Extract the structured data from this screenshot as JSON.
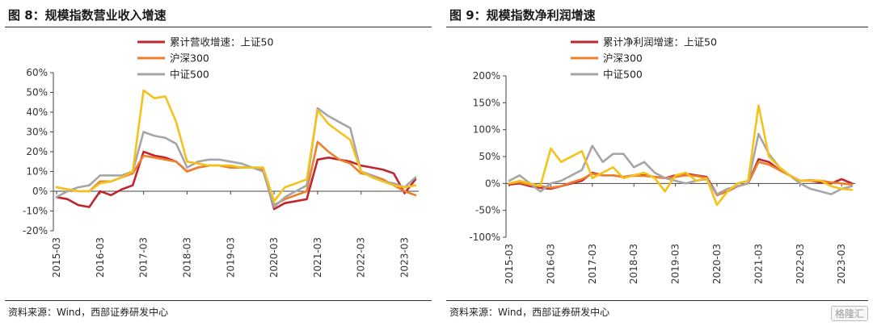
{
  "figures": [
    {
      "title": "图 8：规模指数营业收入增速",
      "source": "资料来源：Wind，西部证券研发中心"
    },
    {
      "title": "图 9：规模指数净利润增速",
      "source": "资料来源：Wind，西部证券研发中心"
    }
  ],
  "watermark": "格隆汇",
  "chart_data": [
    {
      "type": "line",
      "title": "图 8：规模指数营业收入增速",
      "x": [
        "2015-03",
        "2015-06",
        "2015-09",
        "2015-12",
        "2016-03",
        "2016-06",
        "2016-09",
        "2016-12",
        "2017-03",
        "2017-06",
        "2017-09",
        "2017-12",
        "2018-03",
        "2018-06",
        "2018-09",
        "2018-12",
        "2019-03",
        "2019-06",
        "2019-09",
        "2019-12",
        "2020-03",
        "2020-06",
        "2020-09",
        "2020-12",
        "2021-03",
        "2021-06",
        "2021-09",
        "2021-12",
        "2022-03",
        "2022-06",
        "2022-09",
        "2022-12",
        "2023-03",
        "2023-06"
      ],
      "x_ticks": [
        "2015-03",
        "2016-03",
        "2017-03",
        "2018-03",
        "2019-03",
        "2020-03",
        "2021-03",
        "2022-03",
        "2023-03"
      ],
      "y_ticks": [
        "60%",
        "50%",
        "40%",
        "30%",
        "20%",
        "10%",
        "0%",
        "-10%",
        "-20%"
      ],
      "ylim": [
        -20,
        60
      ],
      "y_unit": "%",
      "legend_position": "top-center",
      "series": [
        {
          "name": "累计营收增速：上证50",
          "color": "#c0272d",
          "values": [
            -3,
            -4,
            -7,
            -8,
            0,
            -2,
            1,
            3,
            20,
            18,
            17,
            15,
            10,
            12,
            13,
            13,
            12,
            12,
            12,
            11,
            -9,
            -6,
            -5,
            -4,
            16,
            17,
            16,
            15,
            13,
            12,
            11,
            9,
            -1,
            6
          ]
        },
        {
          "name": "沪深300",
          "color": "#ef7f2c",
          "values": [
            2,
            1,
            0,
            0,
            5,
            5,
            7,
            9,
            18,
            17,
            16,
            15,
            10,
            12,
            13,
            13,
            12,
            12,
            12,
            11,
            -7,
            -4,
            -2,
            0,
            25,
            20,
            16,
            14,
            9,
            8,
            6,
            3,
            0,
            -2
          ]
        },
        {
          "name": "中证500",
          "color": "#a6a6a6",
          "values": [
            -3,
            0,
            2,
            3,
            8,
            8,
            8,
            10,
            30,
            28,
            27,
            24,
            12,
            15,
            16,
            16,
            15,
            14,
            12,
            10,
            -8,
            -3,
            0,
            3,
            42,
            38,
            35,
            32,
            10,
            8,
            5,
            4,
            2,
            7
          ]
        },
        {
          "name": "",
          "color": "#f4c21a",
          "values": [
            2,
            1,
            0,
            0,
            4,
            5,
            7,
            10,
            51,
            47,
            48,
            35,
            15,
            14,
            13,
            13,
            13,
            12,
            12,
            12,
            -5,
            2,
            4,
            6,
            41,
            34,
            30,
            26,
            10,
            7,
            5,
            3,
            2,
            3
          ]
        }
      ]
    },
    {
      "type": "line",
      "title": "图 9：规模指数净利润增速",
      "x": [
        "2015-03",
        "2015-06",
        "2015-09",
        "2015-12",
        "2016-03",
        "2016-06",
        "2016-09",
        "2016-12",
        "2017-03",
        "2017-06",
        "2017-09",
        "2017-12",
        "2018-03",
        "2018-06",
        "2018-09",
        "2018-12",
        "2019-03",
        "2019-06",
        "2019-09",
        "2019-12",
        "2020-03",
        "2020-06",
        "2020-09",
        "2020-12",
        "2021-03",
        "2021-06",
        "2021-09",
        "2021-12",
        "2022-03",
        "2022-06",
        "2022-09",
        "2022-12",
        "2023-03",
        "2023-06"
      ],
      "x_ticks": [
        "2015-03",
        "2016-03",
        "2017-03",
        "2018-03",
        "2019-03",
        "2020-03",
        "2021-03",
        "2022-03",
        "2023-03"
      ],
      "y_ticks": [
        "200%",
        "150%",
        "100%",
        "50%",
        "0%",
        "-50%",
        "-100%"
      ],
      "ylim": [
        -100,
        200
      ],
      "y_unit": "%",
      "legend_position": "top-center",
      "series": [
        {
          "name": "累计净利润增速：上证50",
          "color": "#c0272d",
          "values": [
            -2,
            0,
            -5,
            -8,
            -10,
            -5,
            0,
            5,
            20,
            15,
            15,
            12,
            15,
            15,
            12,
            10,
            15,
            18,
            15,
            12,
            -20,
            -15,
            -5,
            0,
            45,
            40,
            25,
            15,
            5,
            5,
            2,
            0,
            8,
            0
          ]
        },
        {
          "name": "沪深300",
          "color": "#ef7f2c",
          "values": [
            0,
            2,
            -3,
            -5,
            -8,
            -5,
            2,
            8,
            18,
            15,
            15,
            12,
            14,
            14,
            12,
            10,
            12,
            15,
            14,
            10,
            -22,
            -15,
            -5,
            0,
            40,
            35,
            25,
            15,
            5,
            6,
            5,
            2,
            0,
            -2
          ]
        },
        {
          "name": "中证500",
          "color": "#a6a6a6",
          "values": [
            5,
            15,
            0,
            -15,
            0,
            5,
            15,
            25,
            70,
            40,
            55,
            55,
            30,
            40,
            20,
            10,
            5,
            0,
            5,
            8,
            -20,
            -10,
            -5,
            0,
            92,
            55,
            30,
            15,
            0,
            -10,
            -15,
            -20,
            -10,
            -5
          ]
        },
        {
          "name": "",
          "color": "#f4c21a",
          "values": [
            0,
            5,
            0,
            -5,
            65,
            40,
            50,
            60,
            10,
            20,
            30,
            10,
            15,
            20,
            10,
            -15,
            15,
            20,
            5,
            10,
            -40,
            -15,
            0,
            5,
            145,
            50,
            30,
            15,
            5,
            5,
            5,
            -5,
            -10,
            -12
          ]
        }
      ]
    }
  ]
}
